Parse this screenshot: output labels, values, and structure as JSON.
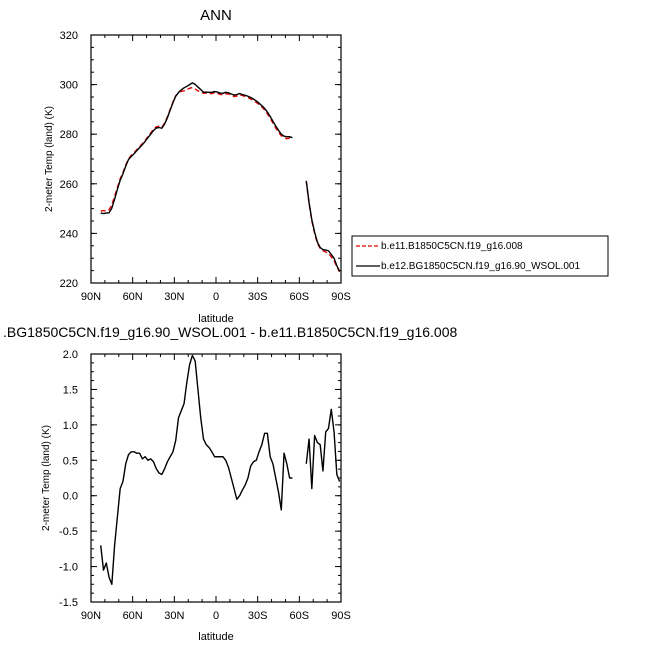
{
  "chart_data": [
    {
      "type": "line",
      "title": "ANN",
      "xlabel": "latitude",
      "ylabel": "2-meter Temp (land) (K)",
      "xlim": [
        90,
        -90
      ],
      "ylim": [
        220,
        320
      ],
      "x_ticks": [
        {
          "value": 90,
          "label": "90N"
        },
        {
          "value": 60,
          "label": "60N"
        },
        {
          "value": 30,
          "label": "30N"
        },
        {
          "value": 0,
          "label": "0"
        },
        {
          "value": -30,
          "label": "30S"
        },
        {
          "value": -60,
          "label": "60S"
        },
        {
          "value": -90,
          "label": "90S"
        }
      ],
      "y_ticks": [
        220,
        240,
        260,
        280,
        300,
        320
      ],
      "legend_position": "right",
      "series": [
        {
          "name": "b.e11.B1850C5CN.f19_g16.008",
          "color": "#e00000",
          "dash": "dashed",
          "segments": [
            {
              "x": [
                83,
                81,
                79,
                77,
                75,
                73,
                71,
                69,
                67,
                65,
                63,
                61,
                59,
                57,
                55,
                53,
                51,
                49,
                47,
                45,
                43,
                41,
                39,
                37,
                35,
                33,
                31,
                29,
                27,
                25,
                23,
                21,
                19,
                17,
                15,
                13,
                11,
                9,
                7,
                5,
                3,
                1,
                -1,
                -3,
                -5,
                -7,
                -9,
                -11,
                -13,
                -15,
                -17,
                -19,
                -21,
                -23,
                -25,
                -27,
                -29,
                -31,
                -33,
                -35,
                -37,
                -39,
                -41,
                -43,
                -45,
                -47,
                -49,
                -51,
                -53,
                -55
              ],
              "y": [
                249.0,
                249.2,
                249.0,
                249.5,
                251.5,
                255.0,
                258.5,
                262.0,
                264.5,
                267.5,
                270.0,
                271.5,
                272.5,
                273.8,
                275.0,
                276.2,
                277.5,
                279.0,
                280.5,
                282.0,
                283.0,
                283.2,
                282.8,
                284.5,
                287.0,
                290.0,
                293.0,
                295.5,
                296.5,
                297.3,
                297.5,
                298.0,
                298.5,
                298.8,
                298.2,
                297.5,
                297.0,
                296.5,
                296.6,
                296.3,
                296.4,
                296.7,
                296.5,
                296.0,
                296.0,
                296.3,
                296.2,
                295.8,
                295.2,
                295.4,
                295.8,
                295.6,
                295.2,
                294.8,
                294.2,
                293.6,
                292.8,
                292.0,
                291.0,
                289.8,
                288.2,
                286.5,
                284.5,
                282.5,
                280.8,
                279.4,
                278.6,
                278.2,
                278.4,
                278.2
              ]
            },
            {
              "x": [
                -65,
                -67,
                -69,
                -71,
                -73,
                -75,
                -77,
                -79,
                -81,
                -83,
                -85,
                -87,
                -89
              ],
              "y": [
                261.0,
                252.0,
                245.0,
                240.0,
                236.0,
                234.0,
                233.0,
                232.5,
                232.0,
                230.5,
                229.0,
                226.5,
                224.5
              ]
            }
          ]
        },
        {
          "name": "b.e12.BG1850C5CN.f19_g16.90_WSOL.001",
          "color": "#000000",
          "dash": "solid",
          "segments": [
            {
              "x": [
                83,
                81,
                79,
                77,
                75,
                73,
                71,
                69,
                67,
                65,
                63,
                61,
                59,
                57,
                55,
                53,
                51,
                49,
                47,
                45,
                43,
                41,
                39,
                37,
                35,
                33,
                31,
                29,
                27,
                25,
                23,
                21,
                19,
                17,
                15,
                13,
                11,
                9,
                7,
                5,
                3,
                1,
                -1,
                -3,
                -5,
                -7,
                -9,
                -11,
                -13,
                -15,
                -17,
                -19,
                -21,
                -23,
                -25,
                -27,
                -29,
                -31,
                -33,
                -35,
                -37,
                -39,
                -41,
                -43,
                -45,
                -47,
                -49,
                -51,
                -53,
                -55
              ],
              "y": [
                248.2,
                248.0,
                248.2,
                248.3,
                250.2,
                253.8,
                257.8,
                261.4,
                264.0,
                267.1,
                269.8,
                271.0,
                272.1,
                273.4,
                274.6,
                275.8,
                277.1,
                278.6,
                280.0,
                281.5,
                282.5,
                282.7,
                282.4,
                284.1,
                286.6,
                289.7,
                292.7,
                295.3,
                296.8,
                297.9,
                298.7,
                299.3,
                300.0,
                300.7,
                300.1,
                299.0,
                298.0,
                296.9,
                297.0,
                296.9,
                296.9,
                297.2,
                297.0,
                296.6,
                296.5,
                296.9,
                296.7,
                296.2,
                295.8,
                296.0,
                296.4,
                296.0,
                295.7,
                295.3,
                294.8,
                294.2,
                293.4,
                292.5,
                291.5,
                290.4,
                288.9,
                287.2,
                285.2,
                283.3,
                281.6,
                280.0,
                279.2,
                279.0,
                279.0,
                278.6
              ]
            },
            {
              "x": [
                -65,
                -67,
                -69,
                -71,
                -73,
                -75,
                -77,
                -79,
                -81,
                -83,
                -85,
                -87,
                -89
              ],
              "y": [
                261.2,
                252.5,
                245.5,
                240.5,
                236.5,
                234.3,
                233.5,
                233.3,
                233.0,
                231.5,
                230.0,
                227.0,
                224.7
              ]
            }
          ]
        }
      ]
    },
    {
      "type": "line",
      "title": ".BG1850C5CN.f19_g16.90_WSOL.001 - b.e11.B1850C5CN.f19_g16.008",
      "xlabel": "latitude",
      "ylabel": "2-meter Temp (land) (K)",
      "xlim": [
        90,
        -90
      ],
      "ylim": [
        -1.5,
        2.0
      ],
      "x_ticks": [
        {
          "value": 90,
          "label": "90N"
        },
        {
          "value": 60,
          "label": "60N"
        },
        {
          "value": 30,
          "label": "30N"
        },
        {
          "value": 0,
          "label": "0"
        },
        {
          "value": -30,
          "label": "30S"
        },
        {
          "value": -60,
          "label": "60S"
        },
        {
          "value": -90,
          "label": "90S"
        }
      ],
      "y_ticks": [
        "-1.5",
        "-1.0",
        "-0.5",
        "0.0",
        "0.5",
        "1.0",
        "1.5",
        "2.0"
      ],
      "series": [
        {
          "color": "#000000",
          "dash": "solid",
          "segments": [
            {
              "x": [
                83,
                81,
                79,
                77,
                75,
                73,
                71,
                69,
                67,
                65,
                63,
                61,
                59,
                57,
                55,
                53,
                51,
                49,
                47,
                45,
                43,
                41,
                39,
                37,
                35,
                33,
                31,
                29,
                27,
                25,
                23,
                21,
                19,
                17,
                15,
                13,
                11,
                9,
                7,
                5,
                3,
                1,
                -1,
                -3,
                -5,
                -7,
                -9,
                -11,
                -13,
                -15,
                -17,
                -19,
                -21,
                -23,
                -25,
                -27,
                -29,
                -31,
                -33,
                -35,
                -37,
                -39,
                -41,
                -43,
                -45,
                -47,
                -49,
                -51,
                -53,
                -55
              ],
              "y": [
                -0.7,
                -1.05,
                -0.95,
                -1.15,
                -1.25,
                -0.7,
                -0.3,
                0.1,
                0.2,
                0.45,
                0.58,
                0.62,
                0.62,
                0.6,
                0.6,
                0.52,
                0.55,
                0.5,
                0.52,
                0.48,
                0.38,
                0.32,
                0.3,
                0.38,
                0.48,
                0.55,
                0.62,
                0.78,
                1.1,
                1.2,
                1.3,
                1.6,
                1.85,
                1.98,
                1.9,
                1.5,
                1.1,
                0.8,
                0.72,
                0.68,
                0.62,
                0.55,
                0.55,
                0.55,
                0.55,
                0.5,
                0.4,
                0.25,
                0.1,
                -0.05,
                0.0,
                0.08,
                0.15,
                0.25,
                0.42,
                0.48,
                0.5,
                0.62,
                0.72,
                0.88,
                0.88,
                0.55,
                0.45,
                0.25,
                0.05,
                -0.2,
                0.6,
                0.45,
                0.25,
                0.25
              ]
            },
            {
              "x": [
                -65,
                -67,
                -69,
                -71,
                -73,
                -75,
                -77,
                -79,
                -81,
                -83,
                -85,
                -87,
                -89
              ],
              "y": [
                0.45,
                0.8,
                0.1,
                0.85,
                0.75,
                0.72,
                0.35,
                0.9,
                0.95,
                1.22,
                0.9,
                0.3,
                0.2
              ]
            }
          ]
        }
      ]
    }
  ]
}
